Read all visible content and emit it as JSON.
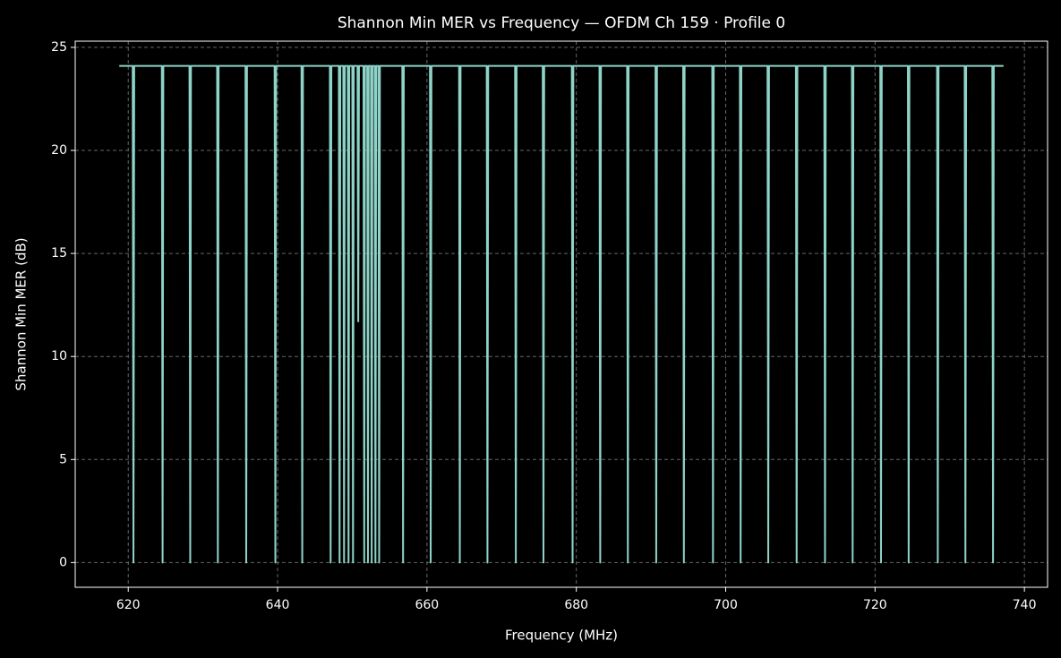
{
  "chart_data": {
    "type": "line",
    "title": "Shannon Min MER vs Frequency — OFDM Ch 159 · Profile 0",
    "xlabel": "Frequency (MHz)",
    "ylabel": "Shannon Min MER (dB)",
    "xlim": [
      612.9,
      743.1
    ],
    "ylim": [
      -1.2,
      25.3
    ],
    "xticks": [
      620,
      640,
      660,
      680,
      700,
      720,
      740
    ],
    "yticks": [
      0,
      5,
      10,
      15,
      20,
      25
    ],
    "grid": true,
    "series": [
      {
        "color": "#8dd3c7",
        "x": [
          618.8,
          620.6,
          620.7,
          620.8,
          624.5,
          624.6,
          624.7,
          628.2,
          628.3,
          628.4,
          631.9,
          632.0,
          632.1,
          635.7,
          635.8,
          635.9,
          639.6,
          639.7,
          639.8,
          643.2,
          643.3,
          643.4,
          647.0,
          647.1,
          647.2,
          648.2,
          648.3,
          648.4,
          648.8,
          648.9,
          649.0,
          649.4,
          649.5,
          649.6,
          650.0,
          650.1,
          650.2,
          650.7,
          650.8,
          650.9,
          651.5,
          651.6,
          651.7,
          652.0,
          652.1,
          652.2,
          652.5,
          652.6,
          652.7,
          653.0,
          653.1,
          653.2,
          653.5,
          653.6,
          653.7,
          656.7,
          656.8,
          656.9,
          660.4,
          660.5,
          660.6,
          664.3,
          664.4,
          664.5,
          668.0,
          668.1,
          668.2,
          671.8,
          671.9,
          672.0,
          675.5,
          675.6,
          675.7,
          679.4,
          679.5,
          679.6,
          683.1,
          683.2,
          683.3,
          686.8,
          686.9,
          687.0,
          690.6,
          690.7,
          690.8,
          694.3,
          694.4,
          694.5,
          698.2,
          698.3,
          698.4,
          701.9,
          702.0,
          702.1,
          705.6,
          705.7,
          705.8,
          709.4,
          709.5,
          709.6,
          713.2,
          713.3,
          713.4,
          716.9,
          717.0,
          717.1,
          720.7,
          720.8,
          720.9,
          724.4,
          724.5,
          724.6,
          728.3,
          728.4,
          728.5,
          732.0,
          732.1,
          732.2,
          735.7,
          735.8,
          735.9,
          737.2
        ],
        "values": [
          24.1,
          24.1,
          0,
          24.1,
          24.1,
          0,
          24.1,
          24.1,
          0,
          24.1,
          24.1,
          0,
          24.1,
          24.1,
          0,
          24.1,
          24.1,
          0,
          24.1,
          24.1,
          0,
          24.1,
          24.1,
          0,
          24.1,
          24.1,
          0,
          24.1,
          24.1,
          0,
          24.1,
          24.1,
          0,
          24.1,
          24.1,
          0,
          24.1,
          24.1,
          11.7,
          24.1,
          24.1,
          0,
          24.1,
          24.1,
          0,
          24.1,
          24.1,
          0,
          24.1,
          24.1,
          0,
          24.1,
          24.1,
          0,
          24.1,
          24.1,
          0,
          24.1,
          24.1,
          0,
          24.1,
          24.1,
          0,
          24.1,
          24.1,
          0,
          24.1,
          24.1,
          0,
          24.1,
          24.1,
          0,
          24.1,
          24.1,
          0,
          24.1,
          24.1,
          0,
          24.1,
          24.1,
          0,
          24.1,
          24.1,
          0,
          24.1,
          24.1,
          0,
          24.1,
          24.1,
          0,
          24.1,
          24.1,
          0,
          24.1,
          24.1,
          0,
          24.1,
          24.1,
          0,
          24.1,
          24.1,
          0,
          24.1,
          24.1,
          0,
          24.1,
          24.1,
          0,
          24.1,
          24.1,
          0,
          24.1,
          24.1,
          0,
          24.1,
          24.1,
          0,
          24.1,
          24.1,
          0,
          24.1,
          24.1
        ]
      }
    ]
  }
}
